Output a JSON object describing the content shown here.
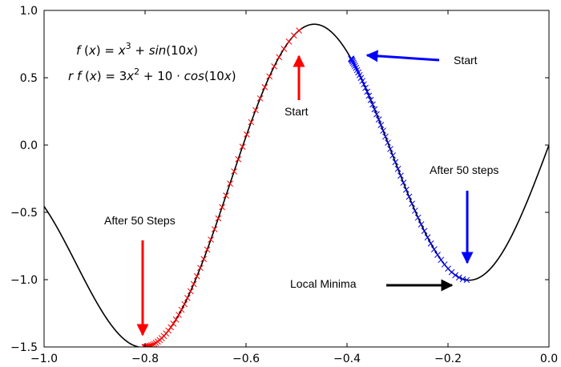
{
  "chart_data": {
    "type": "line",
    "xlim": [
      -1.0,
      0.0
    ],
    "ylim": [
      -1.5,
      1.0
    ],
    "x_ticks": [
      "−1.0",
      "−0.8",
      "−0.6",
      "−0.4",
      "−0.2",
      "0.0"
    ],
    "x_tick_values": [
      -1.0,
      -0.8,
      -0.6,
      -0.4,
      -0.2,
      0.0
    ],
    "y_ticks": [
      "1.0",
      "0.5",
      "0.0",
      "−0.5",
      "−1.0",
      "−1.5"
    ],
    "y_tick_values": [
      1.0,
      0.5,
      0.0,
      -0.5,
      -1.0,
      -1.5
    ],
    "grid": false,
    "function": "x^3 + sin(10x)",
    "series": [
      {
        "role": "curve",
        "color": "#000000",
        "marker": "line",
        "x_range": [
          -1.0,
          0.0
        ]
      },
      {
        "role": "descent-from-left",
        "color": "#ff0000",
        "marker": "x",
        "x_range": [
          -0.801,
          -0.495
        ]
      },
      {
        "role": "descent-from-right",
        "color": "#0000ff",
        "marker": "x",
        "x_range": [
          -0.392,
          -0.163
        ]
      }
    ],
    "formulas": {
      "f": {
        "lhs": [
          "f",
          " (",
          "x",
          ") = "
        ],
        "rhs": [
          "x",
          "3",
          " + ",
          "sin",
          "(10",
          "x",
          ")"
        ]
      },
      "df": {
        "lhs": [
          "r ",
          "f",
          " (",
          "x",
          ") = "
        ],
        "rhs": [
          "3",
          "x",
          "2",
          " + 10 · ",
          "cos",
          "(10",
          "x",
          ")"
        ]
      }
    },
    "annotations": [
      {
        "text": "Start",
        "color": "#ff0000",
        "point": [
          -0.495,
          0.82
        ]
      },
      {
        "text": "After 50 Steps",
        "color": "#ff0000",
        "point": [
          -0.8,
          -1.47
        ]
      },
      {
        "text": "Start",
        "color": "#0000ff",
        "point": [
          -0.39,
          0.66
        ]
      },
      {
        "text": "After 50 steps",
        "color": "#0000ff",
        "point": [
          -0.163,
          -0.99
        ]
      },
      {
        "text": "Local Minima",
        "color": "#000000",
        "point": [
          -0.18,
          -1.0
        ]
      }
    ]
  }
}
